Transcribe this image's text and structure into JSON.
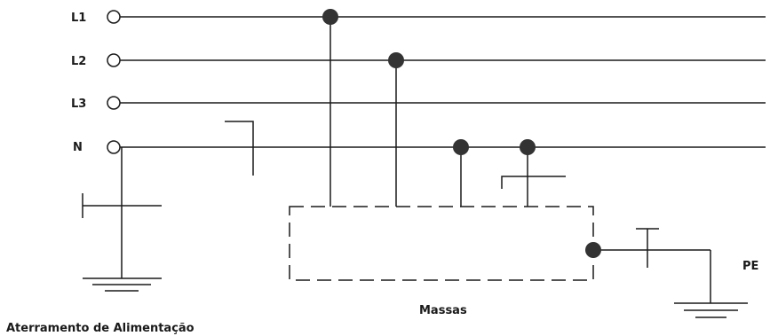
{
  "diagram": {
    "conductors": [
      {
        "id": "l1",
        "label": "L1"
      },
      {
        "id": "l2",
        "label": "L2"
      },
      {
        "id": "l3",
        "label": "L3"
      },
      {
        "id": "n",
        "label": "N"
      }
    ],
    "source_grounding_label": "Aterramento de Alimentação",
    "masses_label": "Massas",
    "pe_label": "PE",
    "colors": {
      "line": "#1a1a1a",
      "node": "#333333",
      "background": "#ffffff"
    }
  }
}
